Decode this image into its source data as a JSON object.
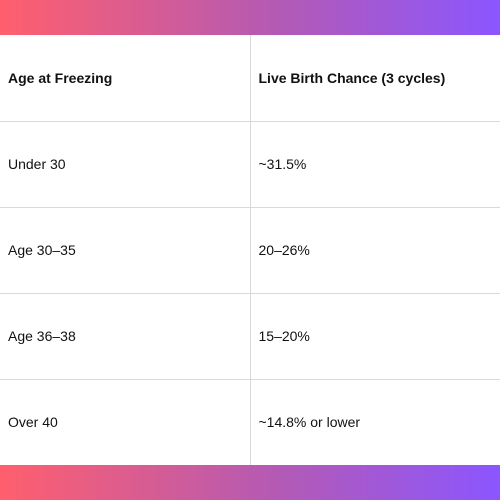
{
  "colors": {
    "gradient_start": "#ff5f6d",
    "gradient_mid": "#b45ab4",
    "gradient_end": "#8b56ff",
    "border": "#d9d9d9",
    "text": "#111111"
  },
  "table": {
    "headers": [
      "Age at Freezing",
      "Live Birth Chance (3 cycles)"
    ],
    "rows": [
      [
        "Under 30",
        "~31.5%"
      ],
      [
        "Age 30–35",
        "20–26%"
      ],
      [
        "Age 36–38",
        "15–20%"
      ],
      [
        "Over 40",
        "~14.8% or lower"
      ]
    ]
  }
}
